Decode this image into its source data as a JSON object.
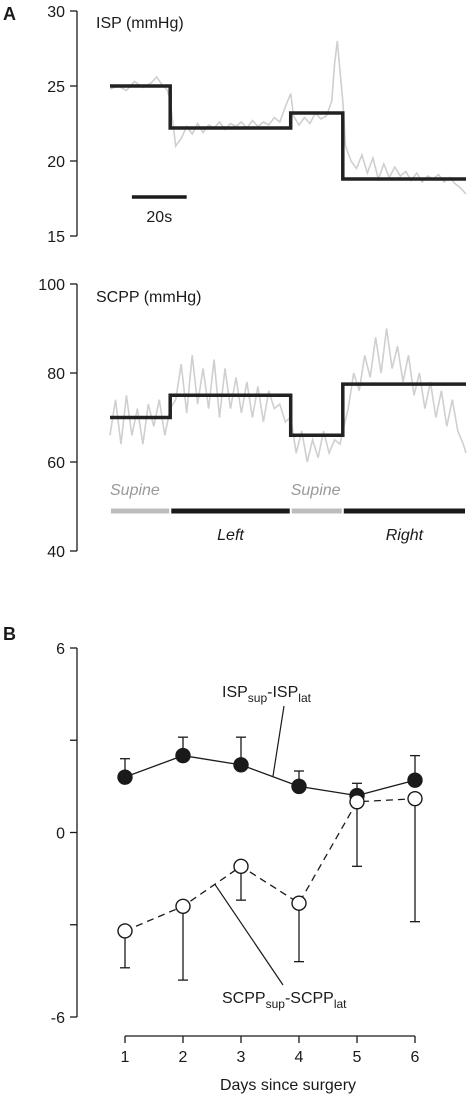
{
  "panel_a_label": "A",
  "panel_b_label": "B",
  "chart_data": [
    {
      "type": "line",
      "panel": "A-top",
      "title": "ISP (mmHg)",
      "ylim": [
        15,
        30
      ],
      "yticks": [
        15,
        20,
        25,
        30
      ],
      "scale_bar_label": "20s",
      "time_range_s": [
        0,
        130
      ],
      "step_segments": [
        {
          "t0": 0,
          "t1": 22,
          "value": 25.0
        },
        {
          "t0": 22,
          "t1": 66,
          "value": 22.2
        },
        {
          "t0": 66,
          "t1": 85,
          "value": 23.2
        },
        {
          "t0": 85,
          "t1": 130,
          "value": 18.8
        }
      ],
      "raw_trace": [
        [
          0,
          24.8
        ],
        [
          3,
          25.0
        ],
        [
          6,
          24.7
        ],
        [
          9,
          25.3
        ],
        [
          12,
          24.9
        ],
        [
          15,
          25.2
        ],
        [
          17,
          25.6
        ],
        [
          19,
          25.1
        ],
        [
          21,
          24.7
        ],
        [
          22,
          24.0
        ],
        [
          24,
          21.0
        ],
        [
          26,
          21.5
        ],
        [
          28,
          22.3
        ],
        [
          30,
          21.8
        ],
        [
          32,
          22.5
        ],
        [
          34,
          21.9
        ],
        [
          36,
          22.4
        ],
        [
          38,
          22.2
        ],
        [
          40,
          22.6
        ],
        [
          42,
          22.1
        ],
        [
          44,
          22.5
        ],
        [
          46,
          22.3
        ],
        [
          48,
          22.6
        ],
        [
          50,
          22.2
        ],
        [
          52,
          22.7
        ],
        [
          54,
          22.3
        ],
        [
          56,
          22.6
        ],
        [
          58,
          22.4
        ],
        [
          60,
          22.9
        ],
        [
          62,
          22.6
        ],
        [
          64,
          23.6
        ],
        [
          66,
          24.5
        ],
        [
          67,
          23.0
        ],
        [
          69,
          22.4
        ],
        [
          71,
          22.9
        ],
        [
          73,
          22.5
        ],
        [
          75,
          23.2
        ],
        [
          77,
          22.8
        ],
        [
          79,
          23.0
        ],
        [
          81,
          24.0
        ],
        [
          82,
          26.5
        ],
        [
          83,
          28.0
        ],
        [
          84,
          26.0
        ],
        [
          85,
          24.0
        ],
        [
          86,
          21.0
        ],
        [
          88,
          20.0
        ],
        [
          90,
          19.5
        ],
        [
          92,
          20.4
        ],
        [
          94,
          19.2
        ],
        [
          96,
          20.2
        ],
        [
          98,
          18.8
        ],
        [
          100,
          19.8
        ],
        [
          102,
          18.9
        ],
        [
          104,
          19.6
        ],
        [
          106,
          19.0
        ],
        [
          108,
          19.3
        ],
        [
          110,
          18.7
        ],
        [
          112,
          19.2
        ],
        [
          114,
          18.6
        ],
        [
          116,
          19.0
        ],
        [
          118,
          18.8
        ],
        [
          120,
          19.1
        ],
        [
          122,
          18.6
        ],
        [
          124,
          18.9
        ],
        [
          126,
          18.5
        ],
        [
          128,
          18.2
        ],
        [
          130,
          17.8
        ]
      ]
    },
    {
      "type": "line",
      "panel": "A-bottom",
      "title": "SCPP (mmHg)",
      "ylim": [
        40,
        100
      ],
      "yticks": [
        40,
        60,
        80,
        100
      ],
      "time_range_s": [
        0,
        130
      ],
      "step_segments": [
        {
          "t0": 0,
          "t1": 22,
          "value": 70
        },
        {
          "t0": 22,
          "t1": 66,
          "value": 75
        },
        {
          "t0": 66,
          "t1": 85,
          "value": 66
        },
        {
          "t0": 85,
          "t1": 130,
          "value": 77.5
        }
      ],
      "raw_trace": [
        [
          0,
          66
        ],
        [
          2,
          74
        ],
        [
          4,
          64
        ],
        [
          6,
          75
        ],
        [
          8,
          66
        ],
        [
          10,
          72
        ],
        [
          12,
          64
        ],
        [
          14,
          73
        ],
        [
          16,
          68
        ],
        [
          18,
          74
        ],
        [
          20,
          66
        ],
        [
          22,
          72
        ],
        [
          24,
          74
        ],
        [
          26,
          82
        ],
        [
          28,
          71
        ],
        [
          30,
          84
        ],
        [
          32,
          73
        ],
        [
          34,
          81
        ],
        [
          36,
          72
        ],
        [
          38,
          83
        ],
        [
          40,
          70
        ],
        [
          42,
          81
        ],
        [
          44,
          72
        ],
        [
          46,
          79
        ],
        [
          48,
          71
        ],
        [
          50,
          78
        ],
        [
          52,
          70
        ],
        [
          54,
          77
        ],
        [
          56,
          69
        ],
        [
          58,
          76
        ],
        [
          60,
          72
        ],
        [
          62,
          73
        ],
        [
          64,
          69
        ],
        [
          66,
          70
        ],
        [
          68,
          62
        ],
        [
          70,
          67
        ],
        [
          72,
          60
        ],
        [
          74,
          65
        ],
        [
          76,
          61
        ],
        [
          78,
          67
        ],
        [
          80,
          62
        ],
        [
          82,
          65
        ],
        [
          84,
          64
        ],
        [
          85,
          67
        ],
        [
          87,
          72
        ],
        [
          89,
          80
        ],
        [
          91,
          76
        ],
        [
          93,
          84
        ],
        [
          95,
          79
        ],
        [
          97,
          88
        ],
        [
          99,
          80
        ],
        [
          101,
          90
        ],
        [
          103,
          81
        ],
        [
          105,
          86
        ],
        [
          107,
          78
        ],
        [
          109,
          84
        ],
        [
          111,
          75
        ],
        [
          113,
          80
        ],
        [
          115,
          72
        ],
        [
          117,
          78
        ],
        [
          119,
          70
        ],
        [
          121,
          76
        ],
        [
          123,
          68
        ],
        [
          125,
          74
        ],
        [
          127,
          67
        ],
        [
          129,
          64
        ],
        [
          130,
          62
        ]
      ],
      "posture_labels": [
        {
          "label": "Supine",
          "t0": 0,
          "t1": 22,
          "style": "supine"
        },
        {
          "label": "Left",
          "t0": 22,
          "t1": 66,
          "style": "lateral"
        },
        {
          "label": "Supine",
          "t0": 66,
          "t1": 85,
          "style": "supine"
        },
        {
          "label": "Right",
          "t0": 85,
          "t1": 130,
          "style": "lateral"
        }
      ]
    },
    {
      "type": "line",
      "panel": "B",
      "xlabel": "Days since surgery",
      "ylabel": "",
      "ylim": [
        -6,
        6
      ],
      "yticks": [
        -6,
        0,
        6
      ],
      "ytick_labels": [
        "-6",
        "0",
        "6"
      ],
      "xlim": [
        1,
        6
      ],
      "x": [
        1,
        2,
        3,
        4,
        5,
        6
      ],
      "series": [
        {
          "name": "ISP",
          "name_sub1": "sup",
          "name_mid": "-ISP",
          "name_sub2": "lat",
          "marker": "filled",
          "linestyle": "solid",
          "values": [
            1.8,
            2.5,
            2.2,
            1.5,
            1.2,
            1.7
          ],
          "error_up": [
            0.6,
            0.6,
            0.9,
            0.5,
            0.4,
            0.8
          ],
          "error_down": [
            0,
            0,
            0,
            0,
            0,
            0
          ]
        },
        {
          "name": "SCPP",
          "name_sub1": "sup",
          "name_mid": "-SCPP",
          "name_sub2": "lat",
          "marker": "open",
          "linestyle": "dashed",
          "values": [
            -3.2,
            -2.4,
            -1.1,
            -2.3,
            1.0,
            1.1
          ],
          "error_up": [
            0,
            0,
            0,
            0,
            0,
            0
          ],
          "error_down": [
            1.2,
            2.4,
            1.1,
            1.9,
            2.1,
            4.0
          ]
        }
      ]
    }
  ]
}
